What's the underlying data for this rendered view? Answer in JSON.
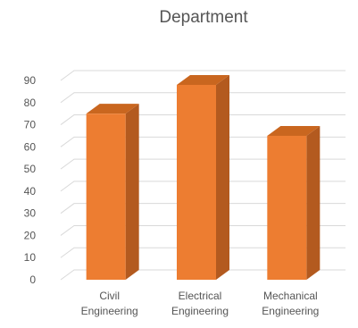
{
  "chart_data": {
    "type": "bar",
    "title": "Department",
    "categories": [
      [
        "Civil",
        "Engineering"
      ],
      [
        "Electrical",
        "Engineering"
      ],
      [
        "Mechanical",
        "Engineering"
      ]
    ],
    "values": [
      75,
      88,
      65
    ],
    "ylim": [
      0,
      90
    ],
    "yticks": [
      0,
      10,
      20,
      30,
      40,
      50,
      60,
      70,
      80,
      90
    ],
    "grid": true,
    "style": "3d-column",
    "colors": {
      "front": "#ED7D31",
      "side": "#B35A1F",
      "top": "#C9661F",
      "grid": "#D9D9D9",
      "text": "#555555"
    }
  }
}
